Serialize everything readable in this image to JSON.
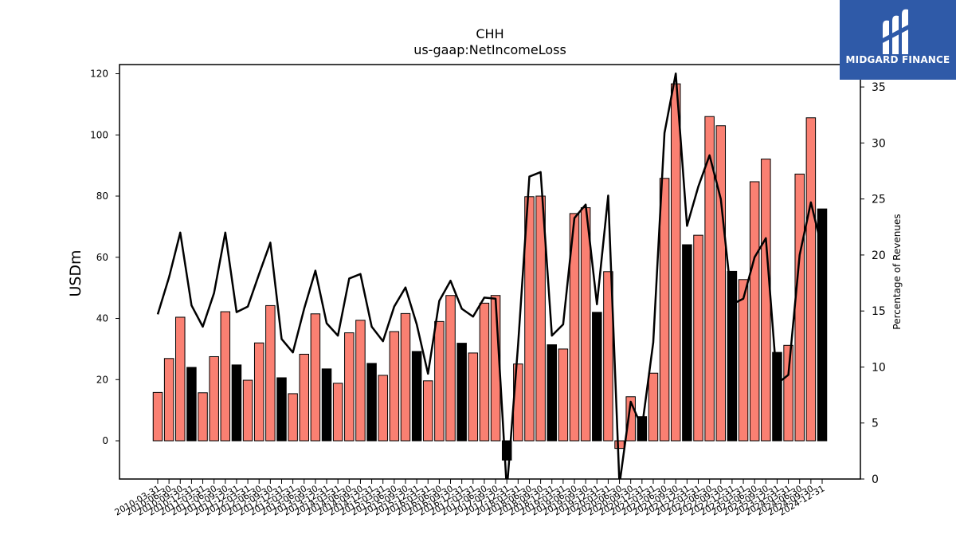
{
  "chart_data": {
    "type": "bar",
    "title": "CHH",
    "subtitle": "us-gaap:NetIncomeLoss",
    "ylabel": "USDm",
    "y2label": "Percentage of Revenues",
    "ylim": [
      -12.5,
      123
    ],
    "y2lim": [
      0,
      37
    ],
    "yticks": [
      0,
      20,
      40,
      60,
      80,
      100,
      120
    ],
    "y2ticks": [
      0,
      5,
      10,
      15,
      20,
      25,
      30,
      35
    ],
    "x": [
      "2010-03-31",
      "2010-06-30",
      "2010-09-30",
      "2010-12-31",
      "2011-03-31",
      "2011-06-30",
      "2011-09-30",
      "2011-12-31",
      "2012-03-31",
      "2012-06-30",
      "2012-09-30",
      "2012-12-31",
      "2013-03-31",
      "2013-06-30",
      "2013-09-30",
      "2013-12-31",
      "2014-03-31",
      "2014-06-30",
      "2014-09-30",
      "2014-12-31",
      "2015-03-31",
      "2015-06-30",
      "2015-09-30",
      "2015-12-31",
      "2016-03-31",
      "2016-06-30",
      "2016-09-30",
      "2016-12-31",
      "2017-03-31",
      "2017-06-30",
      "2017-09-30",
      "2017-12-31",
      "2018-03-31",
      "2018-06-30",
      "2018-09-30",
      "2018-12-31",
      "2019-03-31",
      "2019-06-30",
      "2019-09-30",
      "2019-12-31",
      "2020-03-31",
      "2020-06-30",
      "2020-09-30",
      "2020-12-31",
      "2021-03-31",
      "2021-06-30",
      "2021-09-30",
      "2021-12-31",
      "2022-03-31",
      "2022-06-30",
      "2022-09-30",
      "2022-12-31",
      "2023-03-31",
      "2023-06-30",
      "2023-09-30",
      "2023-12-31",
      "2024-03-31",
      "2024-06-30",
      "2024-09-30",
      "2024-12-31"
    ],
    "series": [
      {
        "kind": "bar",
        "values": [
          15.8,
          26.9,
          40.4,
          24.0,
          15.7,
          27.5,
          42.2,
          24.8,
          19.8,
          32.0,
          44.2,
          20.6,
          15.4,
          28.3,
          41.5,
          23.5,
          18.8,
          35.3,
          39.4,
          25.3,
          21.4,
          35.7,
          41.6,
          29.2,
          19.6,
          39.0,
          47.5,
          31.9,
          28.7,
          45.0,
          47.5,
          -6.3,
          25.1,
          79.8,
          80.0,
          31.4,
          30.0,
          74.3,
          76.2,
          42.0,
          55.3,
          -2.5,
          14.4,
          7.9,
          22.1,
          85.8,
          116.7,
          64.1,
          67.2,
          106.0,
          103.0,
          55.4,
          52.7,
          84.7,
          92.1,
          28.9,
          31.2,
          87.2,
          105.6,
          75.8
        ],
        "colors": [
          "salmon",
          "salmon",
          "salmon",
          "black",
          "salmon",
          "salmon",
          "salmon",
          "black",
          "salmon",
          "salmon",
          "salmon",
          "black",
          "salmon",
          "salmon",
          "salmon",
          "black",
          "salmon",
          "salmon",
          "salmon",
          "black",
          "salmon",
          "salmon",
          "salmon",
          "black",
          "salmon",
          "salmon",
          "salmon",
          "black",
          "salmon",
          "salmon",
          "salmon",
          "black",
          "salmon",
          "salmon",
          "salmon",
          "black",
          "salmon",
          "salmon",
          "salmon",
          "black",
          "salmon",
          "salmon",
          "salmon",
          "black",
          "salmon",
          "salmon",
          "salmon",
          "black",
          "salmon",
          "salmon",
          "salmon",
          "black",
          "salmon",
          "salmon",
          "salmon",
          "black",
          "salmon",
          "salmon",
          "salmon",
          "black"
        ]
      },
      {
        "kind": "line",
        "axis": "right",
        "values": [
          14.7,
          18.0,
          22.0,
          15.5,
          13.6,
          16.6,
          22.0,
          14.9,
          15.4,
          18.3,
          21.1,
          12.5,
          11.3,
          15.2,
          18.6,
          13.9,
          12.8,
          17.9,
          18.3,
          13.6,
          12.3,
          15.4,
          17.1,
          13.8,
          9.4,
          15.9,
          17.7,
          15.2,
          14.5,
          16.2,
          16.1,
          -1.0,
          12.0,
          27.0,
          27.4,
          12.8,
          13.8,
          23.3,
          24.5,
          15.6,
          25.3,
          -0.5,
          6.9,
          4.6,
          12.2,
          30.9,
          36.2,
          22.6,
          26.1,
          28.9,
          25.0,
          15.6,
          16.1,
          19.8,
          21.5,
          8.5,
          9.3,
          20.0,
          24.7,
          20.5
        ]
      }
    ],
    "colors": {
      "salmon": "#fa8072",
      "black": "#000000",
      "line": "#000000"
    },
    "grid": false
  },
  "logo": {
    "text": "MIDGARD FINANCE",
    "bg": "#2f5aa8"
  }
}
